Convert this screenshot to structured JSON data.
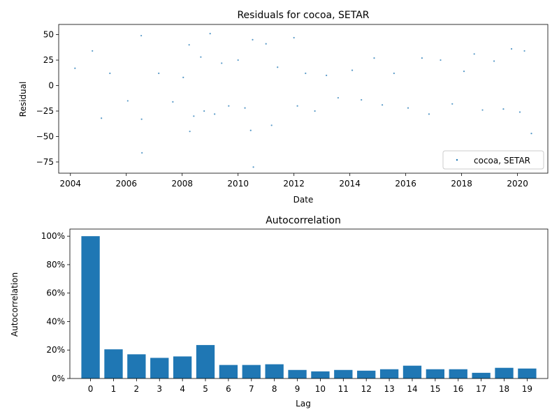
{
  "chart_data": [
    {
      "type": "scatter",
      "title": "Residuals for cocoa, SETAR",
      "xlabel": "Date",
      "ylabel": "Residual",
      "xlim": [
        "2003-08-01",
        "2021-02-01"
      ],
      "ylim": [
        -86,
        60
      ],
      "x_ticks": [
        {
          "value": "2004-01-01",
          "label": "2004"
        },
        {
          "value": "2006-01-01",
          "label": "2006"
        },
        {
          "value": "2008-01-01",
          "label": "2008"
        },
        {
          "value": "2010-01-01",
          "label": "2010"
        },
        {
          "value": "2012-01-01",
          "label": "2012"
        },
        {
          "value": "2014-01-01",
          "label": "2014"
        },
        {
          "value": "2016-01-01",
          "label": "2016"
        },
        {
          "value": "2018-01-01",
          "label": "2018"
        },
        {
          "value": "2020-01-01",
          "label": "2020"
        }
      ],
      "y_ticks": [
        {
          "value": 50,
          "label": "50"
        },
        {
          "value": 25,
          "label": "25"
        },
        {
          "value": 0,
          "label": "0"
        },
        {
          "value": -25,
          "label": "−25"
        },
        {
          "value": -50,
          "label": "−50"
        },
        {
          "value": -75,
          "label": "−75"
        }
      ],
      "legend": {
        "position": "lower-right",
        "label": "cocoa, SETAR"
      },
      "color": "#1f77b4",
      "series": [
        {
          "name": "cocoa, SETAR",
          "points": [
            {
              "x": "2004-03-01",
              "y": 17
            },
            {
              "x": "2004-10-15",
              "y": 34
            },
            {
              "x": "2005-02-10",
              "y": -32
            },
            {
              "x": "2005-06-01",
              "y": 12
            },
            {
              "x": "2006-01-20",
              "y": -15
            },
            {
              "x": "2006-07-15",
              "y": 49
            },
            {
              "x": "2006-07-20",
              "y": -33
            },
            {
              "x": "2006-07-25",
              "y": -66
            },
            {
              "x": "2007-03-01",
              "y": 12
            },
            {
              "x": "2007-09-01",
              "y": -16
            },
            {
              "x": "2008-01-15",
              "y": 8
            },
            {
              "x": "2008-04-01",
              "y": 40
            },
            {
              "x": "2008-04-10",
              "y": -45
            },
            {
              "x": "2008-06-01",
              "y": -30
            },
            {
              "x": "2008-09-01",
              "y": 28
            },
            {
              "x": "2008-10-15",
              "y": -25
            },
            {
              "x": "2009-01-01",
              "y": 51
            },
            {
              "x": "2009-03-01",
              "y": -28
            },
            {
              "x": "2009-06-01",
              "y": 22
            },
            {
              "x": "2009-09-01",
              "y": -20
            },
            {
              "x": "2010-01-01",
              "y": 25
            },
            {
              "x": "2010-04-01",
              "y": -22
            },
            {
              "x": "2010-06-15",
              "y": -44
            },
            {
              "x": "2010-07-10",
              "y": 45
            },
            {
              "x": "2010-07-20",
              "y": -80
            },
            {
              "x": "2011-01-01",
              "y": 41
            },
            {
              "x": "2011-03-15",
              "y": -39
            },
            {
              "x": "2011-06-01",
              "y": 18
            },
            {
              "x": "2012-01-01",
              "y": 47
            },
            {
              "x": "2012-02-15",
              "y": -20
            },
            {
              "x": "2012-06-01",
              "y": 12
            },
            {
              "x": "2012-10-01",
              "y": -25
            },
            {
              "x": "2013-03-01",
              "y": 10
            },
            {
              "x": "2013-08-01",
              "y": -12
            },
            {
              "x": "2014-02-01",
              "y": 15
            },
            {
              "x": "2014-06-01",
              "y": -14
            },
            {
              "x": "2014-11-15",
              "y": 27
            },
            {
              "x": "2015-03-01",
              "y": -19
            },
            {
              "x": "2015-08-01",
              "y": 12
            },
            {
              "x": "2016-02-01",
              "y": -22
            },
            {
              "x": "2016-08-01",
              "y": 27
            },
            {
              "x": "2016-11-01",
              "y": -28
            },
            {
              "x": "2017-04-01",
              "y": 25
            },
            {
              "x": "2017-09-01",
              "y": -18
            },
            {
              "x": "2018-02-01",
              "y": 14
            },
            {
              "x": "2018-06-15",
              "y": 31
            },
            {
              "x": "2018-10-01",
              "y": -24
            },
            {
              "x": "2019-03-01",
              "y": 24
            },
            {
              "x": "2019-07-01",
              "y": -23
            },
            {
              "x": "2019-10-15",
              "y": 36
            },
            {
              "x": "2020-02-01",
              "y": -26
            },
            {
              "x": "2020-04-01",
              "y": 34
            },
            {
              "x": "2020-07-01",
              "y": -47
            }
          ]
        }
      ]
    },
    {
      "type": "bar",
      "title": "Autocorrelation",
      "xlabel": "Lag",
      "ylabel": "Autocorrelation",
      "ylim": [
        0,
        1.05
      ],
      "y_ticks": [
        {
          "value": 0,
          "label": "0%"
        },
        {
          "value": 0.2,
          "label": "20%"
        },
        {
          "value": 0.4,
          "label": "40%"
        },
        {
          "value": 0.6,
          "label": "60%"
        },
        {
          "value": 0.8,
          "label": "80%"
        },
        {
          "value": 1.0,
          "label": "100%"
        }
      ],
      "categories": [
        "0",
        "1",
        "2",
        "3",
        "4",
        "5",
        "6",
        "7",
        "8",
        "9",
        "10",
        "11",
        "12",
        "13",
        "14",
        "15",
        "16",
        "17",
        "18",
        "19"
      ],
      "values": [
        1.0,
        0.205,
        0.17,
        0.145,
        0.155,
        0.235,
        0.095,
        0.095,
        0.1,
        0.06,
        0.05,
        0.06,
        0.055,
        0.065,
        0.09,
        0.065,
        0.065,
        0.04,
        0.075,
        0.07
      ],
      "color": "#1f77b4",
      "grid": false
    }
  ]
}
